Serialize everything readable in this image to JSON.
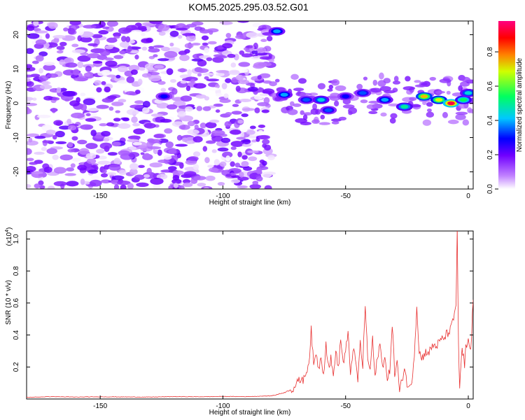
{
  "page": {
    "title": "KOM5.2025.295.03.52.G01"
  },
  "chart_data": [
    {
      "type": "heatmap",
      "title": "KOM5.2025.295.03.52.G01",
      "xlabel": "Height of straight line (km)",
      "ylabel": "Frequency (Hz)",
      "xlim": [
        -180,
        2
      ],
      "ylim": [
        -25,
        24
      ],
      "xticks": [
        -150,
        -100,
        -50,
        0
      ],
      "yticks": [
        -20,
        -10,
        0,
        10,
        20
      ],
      "grid": false,
      "colorbar": {
        "label": "Normalized spectral amplitude",
        "range": [
          0,
          0.98
        ],
        "ticks": [
          "0.0",
          "0.2",
          "0.4",
          "0.6",
          "0.8"
        ],
        "colormap": [
          "#ffffff",
          "#b050ff",
          "#0000ff",
          "#00c8ff",
          "#00ff60",
          "#ffff00",
          "#ff0000",
          "#ff0080"
        ]
      },
      "features": {
        "background_noise": {
          "x_range": [
            -180,
            -80
          ],
          "amplitude": 0.1
        },
        "band_center_hz": 1,
        "ridge": [
          {
            "x": -78,
            "y": 21,
            "amplitude": 0.4
          },
          {
            "x": -124,
            "y": 2,
            "amplitude": 0.3
          },
          {
            "x": -75,
            "y": 2.5,
            "amplitude": 0.4
          },
          {
            "x": -66,
            "y": 1,
            "amplitude": 0.35
          },
          {
            "x": -60,
            "y": 1,
            "amplitude": 0.45
          },
          {
            "x": -57,
            "y": -2,
            "amplitude": 0.35
          },
          {
            "x": -50,
            "y": 2,
            "amplitude": 0.3
          },
          {
            "x": -43,
            "y": 3,
            "amplitude": 0.35
          },
          {
            "x": -34,
            "y": 1,
            "amplitude": 0.4
          },
          {
            "x": -26,
            "y": -1,
            "amplitude": 0.5
          },
          {
            "x": -18,
            "y": 2,
            "amplitude": 0.75
          },
          {
            "x": -12,
            "y": 1,
            "amplitude": 0.7
          },
          {
            "x": -7,
            "y": 0,
            "amplitude": 0.95
          },
          {
            "x": -2,
            "y": 1,
            "amplitude": 0.55
          },
          {
            "x": 0,
            "y": 3,
            "amplitude": 0.45
          }
        ]
      }
    },
    {
      "type": "line",
      "xlabel": "Height of straight line (km)",
      "ylabel": "SNR (10 * v/v)",
      "y_multiplier": "(x10",
      "y_multiplier_exp": "4",
      "y_multiplier_close": ")",
      "xlim": [
        -180,
        2
      ],
      "ylim": [
        0,
        1.05
      ],
      "xticks": [
        -150,
        -100,
        -50,
        0
      ],
      "yticks": [
        "0.2",
        "0.4",
        "0.6",
        "0.8",
        "1.0"
      ],
      "grid": false,
      "series": [
        {
          "color": "#e83030",
          "x": [
            -180,
            -170,
            -160,
            -150,
            -140,
            -130,
            -120,
            -110,
            -100,
            -90,
            -80,
            -75,
            -72,
            -70,
            -68,
            -67,
            -66,
            -65,
            -64,
            -63,
            -62,
            -61,
            -60,
            -59,
            -58,
            -57,
            -56,
            -55,
            -54,
            -53,
            -52,
            -51,
            -50,
            -49,
            -48,
            -47,
            -46,
            -45,
            -44,
            -43,
            -42,
            -41,
            -40,
            -39,
            -38,
            -37,
            -36,
            -35,
            -34,
            -33,
            -32,
            -31,
            -30,
            -29,
            -28,
            -27,
            -26,
            -25,
            -24,
            -23,
            -22,
            -21,
            -20,
            -19,
            -18,
            -17,
            -16,
            -15,
            -14,
            -13,
            -12,
            -11,
            -10,
            -9,
            -8,
            -7,
            -6,
            -5,
            -4.5,
            -4,
            -3.5,
            -3,
            -2.5,
            -2,
            -1.5,
            -1,
            0,
            1,
            2
          ],
          "y": [
            0.01,
            0.015,
            0.012,
            0.014,
            0.013,
            0.012,
            0.015,
            0.014,
            0.016,
            0.015,
            0.02,
            0.04,
            0.06,
            0.09,
            0.13,
            0.12,
            0.18,
            0.22,
            0.43,
            0.2,
            0.3,
            0.18,
            0.28,
            0.15,
            0.35,
            0.2,
            0.25,
            0.14,
            0.31,
            0.18,
            0.38,
            0.22,
            0.3,
            0.4,
            0.16,
            0.32,
            0.24,
            0.12,
            0.35,
            0.2,
            0.6,
            0.25,
            0.18,
            0.38,
            0.12,
            0.27,
            0.34,
            0.2,
            0.28,
            0.1,
            0.18,
            0.48,
            0.15,
            0.24,
            0.04,
            0.12,
            0.2,
            0.1,
            0.06,
            0.12,
            0.28,
            0.58,
            0.3,
            0.25,
            0.28,
            0.3,
            0.29,
            0.32,
            0.34,
            0.33,
            0.35,
            0.37,
            0.38,
            0.4,
            0.42,
            0.44,
            0.5,
            0.6,
            1.05,
            0.35,
            0.04,
            0.22,
            0.3,
            0.26,
            0.2,
            0.32,
            0.36,
            0.3,
            0.62
          ]
        }
      ]
    }
  ]
}
